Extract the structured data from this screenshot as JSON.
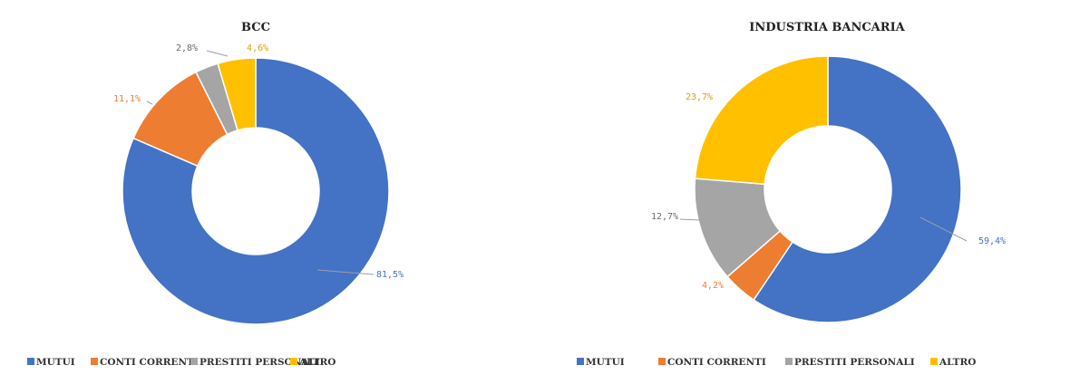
{
  "chart_data": [
    {
      "type": "pie",
      "variant": "donut",
      "title": "BCC",
      "categories": [
        "MUTUI",
        "CONTI CORRENTI",
        "PRESTITI PERSONALI",
        "ALTRO"
      ],
      "values": [
        81.5,
        11.1,
        2.8,
        4.6
      ],
      "labels": [
        "81,5%",
        "11,1%",
        "2,8%",
        "4,6%"
      ],
      "legend_position": "bottom"
    },
    {
      "type": "pie",
      "variant": "donut",
      "title": "INDUSTRIA BANCARIA",
      "categories": [
        "MUTUI",
        "CONTI CORRENTI",
        "PRESTITI PERSONALI",
        "ALTRO"
      ],
      "values": [
        59.4,
        4.2,
        12.7,
        23.7
      ],
      "labels": [
        "59,4%",
        "4,2%",
        "12,7%",
        "23,7%"
      ],
      "legend_position": "bottom"
    }
  ],
  "colors": [
    "#4472C4",
    "#ED7D31",
    "#A5A5A5",
    "#FFC000"
  ]
}
